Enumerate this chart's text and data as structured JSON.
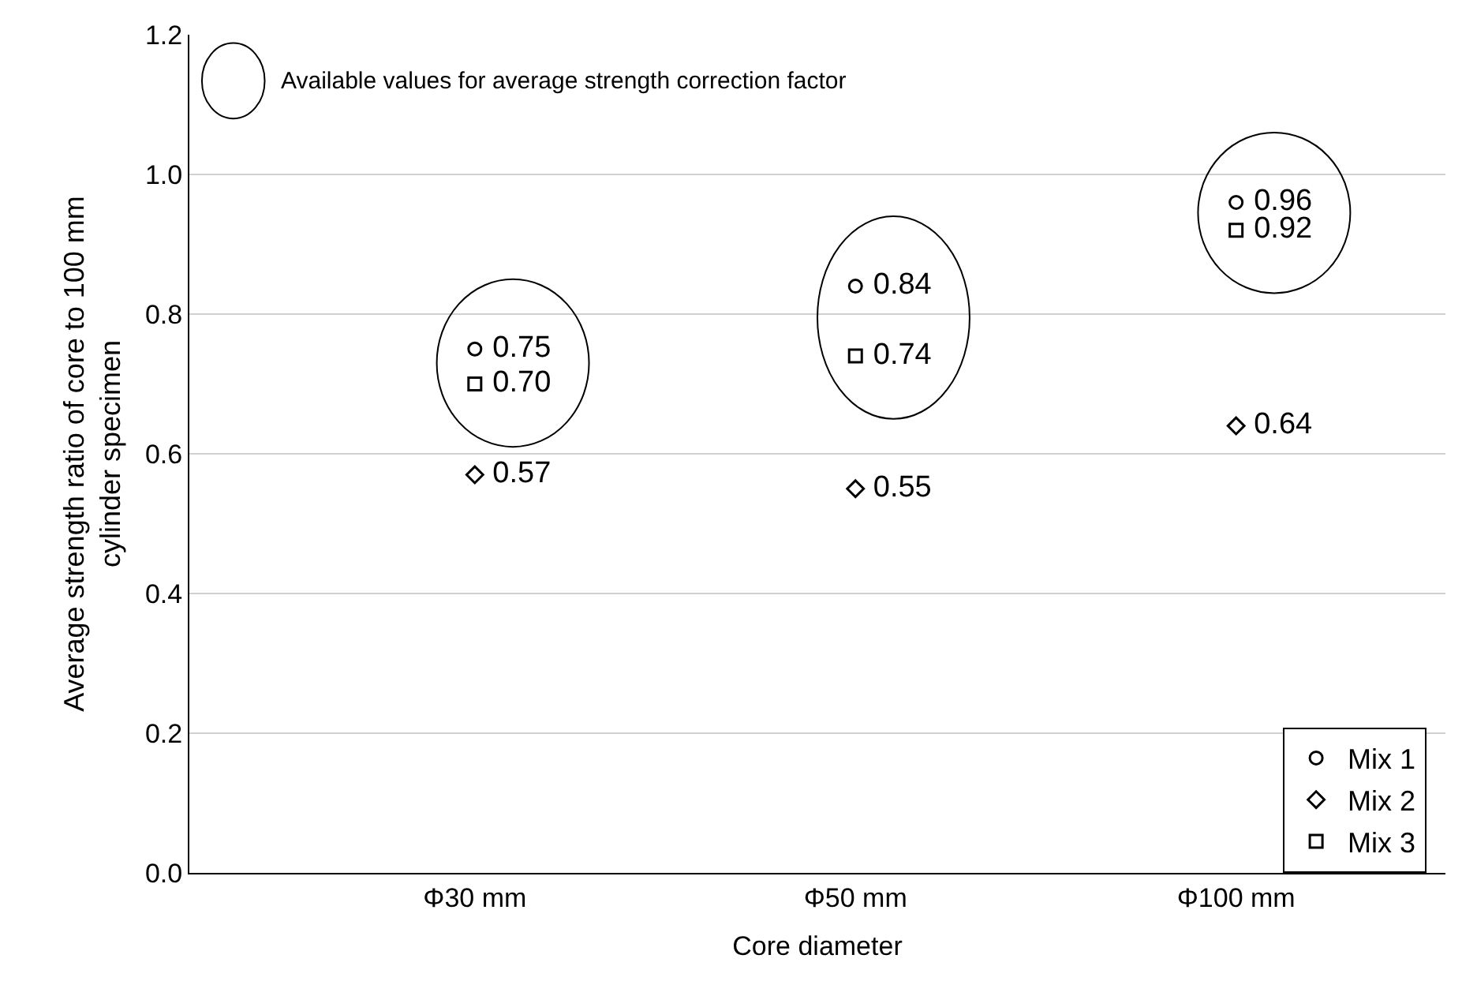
{
  "chart_data": {
    "type": "scatter",
    "xlabel": "Core diameter",
    "ylabel": "Average strength ratio of core to 100 mm\ncylinder specimen",
    "categories": [
      "Φ30 mm",
      "Φ50 mm",
      "Φ100 mm"
    ],
    "series": [
      {
        "name": "Mix 1",
        "color": "#000000",
        "marker": "circle",
        "values": [
          0.75,
          0.84,
          0.96
        ],
        "value_labels": [
          "0.75",
          "0.84",
          "0.96"
        ]
      },
      {
        "name": "Mix 2",
        "color": "#000000",
        "marker": "diamond",
        "values": [
          0.57,
          0.55,
          0.64
        ],
        "value_labels": [
          "0.57",
          "0.55",
          "0.64"
        ]
      },
      {
        "name": "Mix 3",
        "color": "#000000",
        "marker": "square",
        "values": [
          0.7,
          0.74,
          0.92
        ],
        "value_labels": [
          "0.70",
          "0.74",
          "0.92"
        ]
      }
    ],
    "ylim": [
      0,
      1.2
    ],
    "yticks": [
      {
        "value": 0,
        "label": "0.0"
      },
      {
        "value": 0.2,
        "label": "0.2"
      },
      {
        "value": 0.4,
        "label": "0.4"
      },
      {
        "value": 0.6,
        "label": "0.6"
      },
      {
        "value": 0.8,
        "label": "0.8"
      },
      {
        "value": 1.0,
        "label": "1.0"
      },
      {
        "value": 1.2,
        "label": "1.2"
      }
    ],
    "grid": "y",
    "legend": "bottom right",
    "annotations": [
      "Available values for average strength correction factor"
    ]
  }
}
